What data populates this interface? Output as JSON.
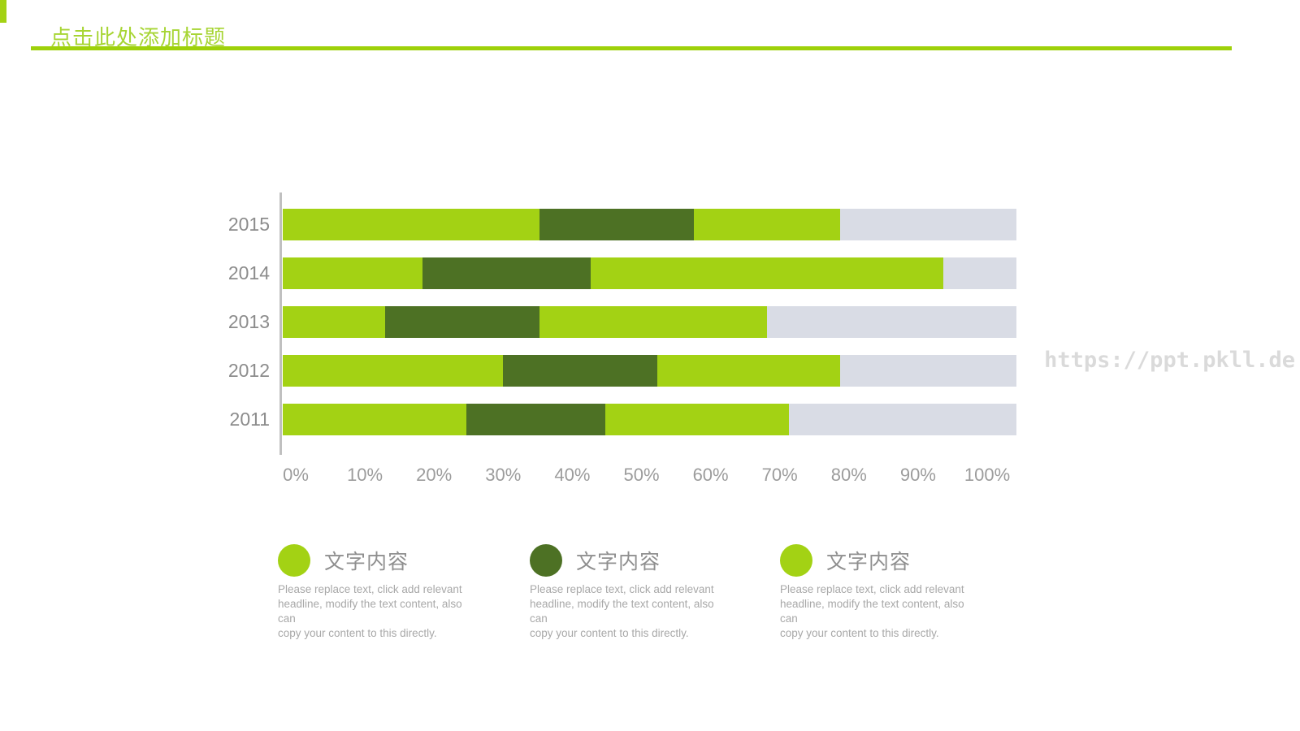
{
  "slide": {
    "title": "点击此处添加标题",
    "watermark": "https://ppt.pkll.de"
  },
  "colors": {
    "light_green": "#a3d214",
    "dark_green": "#4d7124",
    "track_gray": "#d9dce5",
    "title_green": "#a7d534",
    "underline_green": "#9ed10a",
    "axis_gray": "#c0c0c0"
  },
  "chart_data": {
    "type": "bar",
    "orientation": "horizontal",
    "stacked": true,
    "title": "",
    "xlabel": "",
    "ylabel": "",
    "categories": [
      "2015",
      "2014",
      "2013",
      "2012",
      "2011"
    ],
    "series": [
      {
        "name": "文字内容",
        "color": "#a3d214",
        "in_legend": true,
        "values": [
          35,
          19,
          14,
          30,
          25
        ]
      },
      {
        "name": "文字内容",
        "color": "#4d7124",
        "in_legend": true,
        "values": [
          21,
          23,
          21,
          21,
          19
        ]
      },
      {
        "name": "文字内容",
        "color": "#a3d214",
        "in_legend": true,
        "values": [
          20,
          48,
          31,
          25,
          25
        ]
      },
      {
        "name": "remainder-track",
        "color": "#d9dce5",
        "in_legend": false,
        "values": [
          24,
          10,
          34,
          24,
          31
        ]
      }
    ],
    "x_ticks": [
      "0%",
      "10%",
      "20%",
      "30%",
      "40%",
      "50%",
      "60%",
      "70%",
      "80%",
      "90%",
      "100%"
    ],
    "xlim": [
      0,
      100
    ],
    "units": "percent",
    "grid": false,
    "legend_position": "bottom"
  },
  "legend": {
    "items": [
      {
        "swatch_color": "#a3d214",
        "title": "文字内容",
        "body": "Please replace text, click add relevant\nheadline, modify the text content, also can\ncopy your content to this directly."
      },
      {
        "swatch_color": "#4d7124",
        "title": "文字内容",
        "body": "Please replace text, click add relevant\nheadline, modify the text content, also can\ncopy your content to this directly."
      },
      {
        "swatch_color": "#a3d214",
        "title": "文字内容",
        "body": "Please replace text, click add relevant\nheadline, modify the text content, also can\ncopy your content to this directly."
      }
    ]
  }
}
